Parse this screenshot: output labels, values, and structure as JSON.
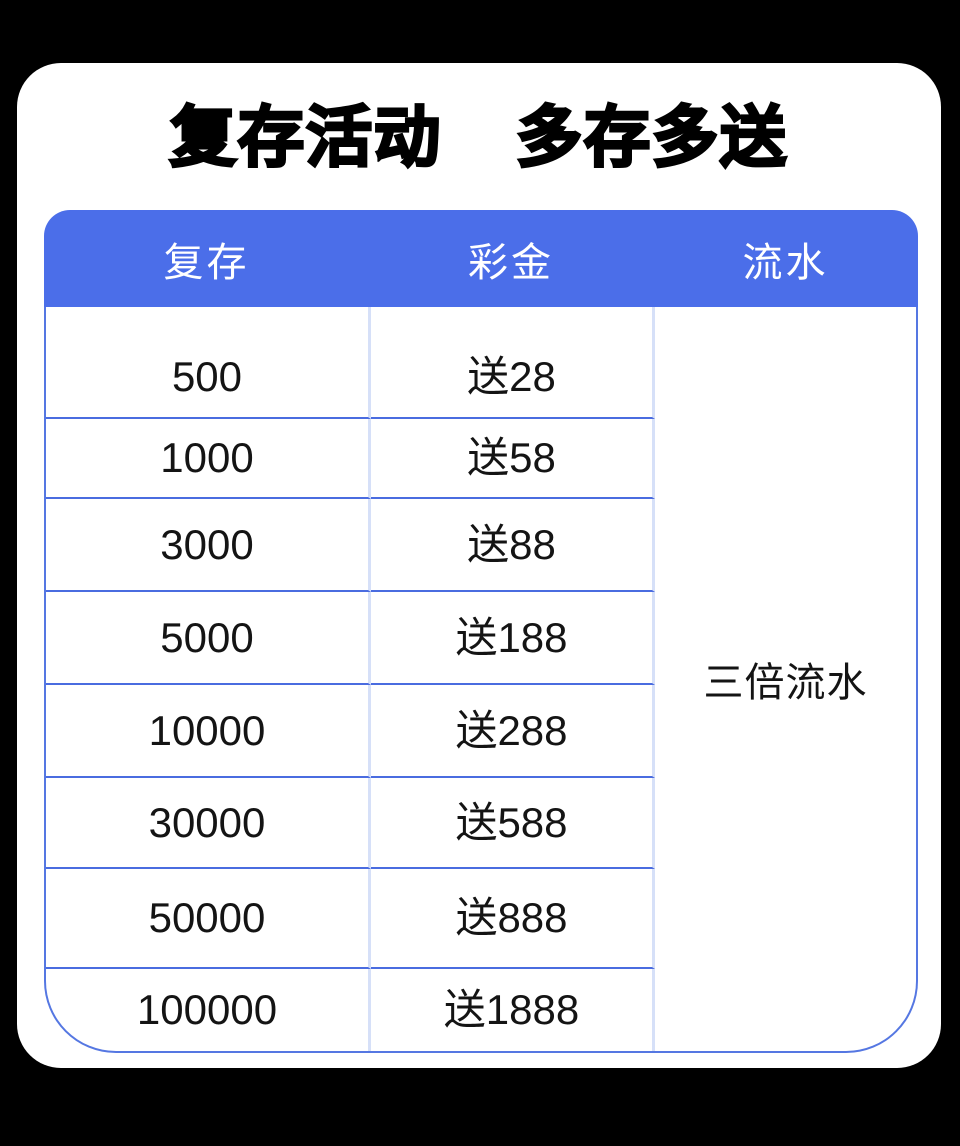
{
  "title": {
    "part1": "复存活动",
    "part2": "多存多送"
  },
  "table": {
    "headers": [
      {
        "label": "复存"
      },
      {
        "label": "彩金"
      },
      {
        "label": "流水"
      }
    ],
    "rows": [
      {
        "deposit": "500",
        "bonus": "送28"
      },
      {
        "deposit": "1000",
        "bonus": "送58"
      },
      {
        "deposit": "3000",
        "bonus": "送88"
      },
      {
        "deposit": "5000",
        "bonus": "送188"
      },
      {
        "deposit": "10000",
        "bonus": "送288"
      },
      {
        "deposit": "30000",
        "bonus": "送588"
      },
      {
        "deposit": "50000",
        "bonus": "送888"
      },
      {
        "deposit": "100000",
        "bonus": "送1888"
      }
    ],
    "turnover": "三倍流水"
  },
  "chart_data": {
    "type": "table",
    "title": "复存活动 多存多送",
    "columns": [
      "复存",
      "彩金",
      "流水"
    ],
    "deposits": [
      500,
      1000,
      3000,
      5000,
      10000,
      30000,
      50000,
      100000
    ],
    "bonuses": [
      28,
      58,
      88,
      188,
      288,
      588,
      888,
      1888
    ],
    "turnover_requirement": "三倍流水"
  },
  "colors": {
    "background": "#000000",
    "card": "#ffffff",
    "header_bg": "#4b6ee9",
    "header_text": "#ffffff",
    "row_divider": "#4a6ce0",
    "column_divider": "#d6e0f8",
    "table_border": "#5577e2",
    "body_text": "#141414",
    "title_text": "#000000"
  }
}
